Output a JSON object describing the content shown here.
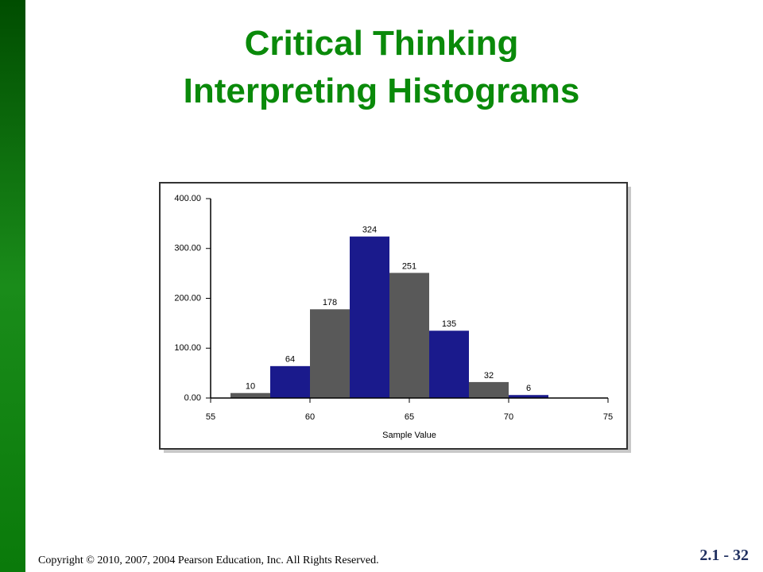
{
  "slide": {
    "title": [
      "Critical Thinking",
      "Interpreting Histograms"
    ],
    "copyright": "Copyright © 2010, 2007, 2004 Pearson Education, Inc. All Rights Reserved.",
    "page_number": "2.1 - 32"
  },
  "chart_data": {
    "type": "histogram",
    "bins": [
      56,
      58,
      60,
      62,
      64,
      66,
      68,
      70,
      72
    ],
    "values": [
      10,
      64,
      178,
      324,
      251,
      135,
      32,
      6
    ],
    "colors": [
      "#595959",
      "#1a1a8c",
      "#595959",
      "#1a1a8c",
      "#595959",
      "#1a1a8c",
      "#595959",
      "#1a1a8c"
    ],
    "x_label": "Sample Value",
    "xlim": [
      55,
      75
    ],
    "xticks": [
      55,
      60,
      65,
      70,
      75
    ],
    "ylim": [
      0,
      400
    ],
    "yticks": [
      {
        "value": 0,
        "label": "0.00"
      },
      {
        "value": 100,
        "label": "100.00"
      },
      {
        "value": 200,
        "label": "200.00"
      },
      {
        "value": 300,
        "label": "300.00"
      },
      {
        "value": 400,
        "label": "400.00"
      }
    ]
  }
}
